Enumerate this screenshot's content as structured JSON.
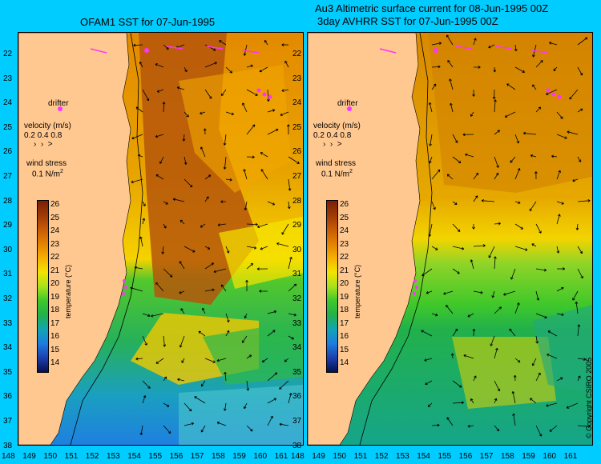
{
  "colors": {
    "background": "#00ccff",
    "land": "#ffc890",
    "drifter": "#ff33ff",
    "colorbar": [
      "#06104e",
      "#1c3fae",
      "#1d7de0",
      "#10a5b4",
      "#22b04b",
      "#3fc82a",
      "#a8e21b",
      "#f3e300",
      "#f5b000",
      "#e38200",
      "#c75b06",
      "#9d3a05",
      "#7a1f05"
    ]
  },
  "left_panel": {
    "title": "OFAM1 SST for 07-Jun-1995",
    "legend": {
      "drifter": "drifter",
      "velocity_label": "velocity (m/s)",
      "velocity_values": "0.2 0.4 0.8",
      "wind_label": "wind stress",
      "wind_value": "0.1 N/m",
      "wind_sup": "2"
    }
  },
  "right_panel": {
    "title_line1": "Au3 Altimetric surface current for 08-Jun-1995 00Z",
    "title_line2": "3day AVHRR SST for 07-Jun-1995 00Z",
    "legend": {
      "drifter": "drifter",
      "velocity_label": "velocity (m/s)",
      "velocity_values": "0.2 0.4 0.8",
      "wind_label": "wind stress",
      "wind_value": "0.1 N/m",
      "wind_sup": "2"
    },
    "copyright": "© Copyright CSIRO 2005"
  },
  "lat_labels": [
    "22",
    "23",
    "24",
    "25",
    "26",
    "27",
    "28",
    "29",
    "30",
    "31",
    "32",
    "33",
    "34",
    "35",
    "36",
    "37",
    "38"
  ],
  "lon_labels": [
    "148",
    "149",
    "150",
    "151",
    "152",
    "153",
    "154",
    "155",
    "156",
    "157",
    "158",
    "159",
    "160",
    "161"
  ],
  "colorbar": {
    "ticks": [
      "26",
      "25",
      "24",
      "23",
      "22",
      "21",
      "20",
      "19",
      "18",
      "17",
      "16",
      "15",
      "14"
    ],
    "title": "temperature (°C)"
  }
}
